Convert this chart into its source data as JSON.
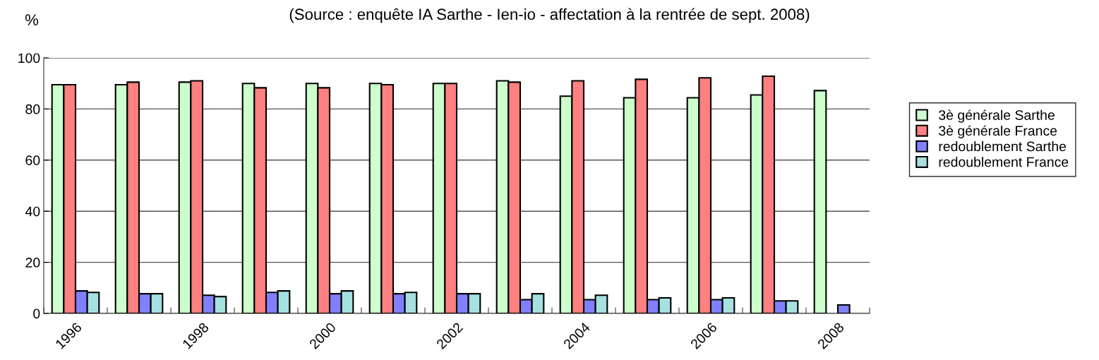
{
  "chart_data": {
    "type": "bar",
    "title": "(Source : enquête IA Sarthe - Ien-io - affectation à la rentrée de sept. 2008)",
    "ylabel": "%",
    "categories": [
      "1996",
      null,
      "1998",
      null,
      "2000",
      null,
      "2002",
      null,
      "2004",
      null,
      "2006",
      null,
      "2008"
    ],
    "series": [
      {
        "name": "3è générale Sarthe",
        "color": "#ccffcc",
        "values": [
          89.5,
          89.5,
          90.5,
          90,
          90,
          90,
          90,
          91,
          85,
          84.4,
          84.4,
          85.5,
          87.2
        ]
      },
      {
        "name": "3è générale France",
        "color": "#ff8080",
        "values": [
          89.5,
          90.5,
          91,
          88.3,
          88.3,
          89.5,
          90,
          90.5,
          91,
          91.6,
          92.2,
          92.8,
          null
        ]
      },
      {
        "name": "redoublement Sarthe",
        "color": "#8080ff",
        "values": [
          8.8,
          7.7,
          7.1,
          8.2,
          7.7,
          7.7,
          7.7,
          5.4,
          5.4,
          5.4,
          5.4,
          4.9,
          3.3
        ]
      },
      {
        "name": "redoublement France",
        "color": "#a6e0e0",
        "values": [
          8.2,
          7.7,
          6.6,
          8.8,
          8.8,
          8.2,
          7.7,
          7.7,
          7.1,
          6.1,
          6.1,
          4.9,
          null
        ]
      }
    ],
    "ylim": [
      0,
      100
    ],
    "yticks": [
      0,
      20,
      40,
      60,
      80,
      100
    ],
    "grid": "y",
    "legend": "right"
  }
}
